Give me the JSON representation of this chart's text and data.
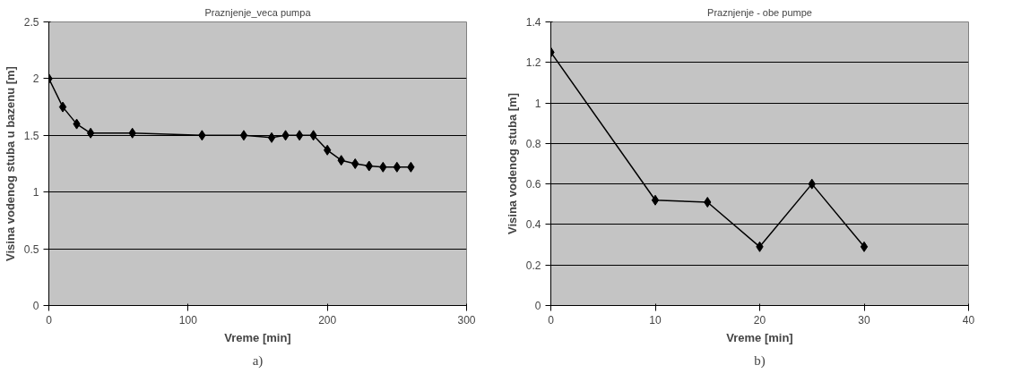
{
  "chart_data": [
    {
      "type": "line",
      "title": "Praznjenje_veca pumpa",
      "xlabel": "Vreme [min]",
      "ylabel": "Visina vodenog stuba u bazenu [m]",
      "annotations": [
        "a)"
      ],
      "series": [
        {
          "color": "#000000",
          "x": [
            0,
            10,
            20,
            30,
            60,
            110,
            140,
            160,
            170,
            180,
            190,
            200,
            210,
            220,
            230,
            240,
            250,
            260
          ],
          "values": [
            2,
            1.75,
            1.6,
            1.52,
            1.52,
            1.5,
            1.5,
            1.48,
            1.5,
            1.5,
            1.5,
            1.37,
            1.28,
            1.25,
            1.23,
            1.22,
            1.22,
            1.22
          ]
        }
      ],
      "xlim": [
        0,
        300
      ],
      "xticks": [
        0,
        100,
        200,
        300
      ],
      "ylim": [
        0,
        2.5
      ],
      "yticks": [
        0,
        0.5,
        1,
        1.5,
        2,
        2.5
      ],
      "grid": "y",
      "marker": "diamond",
      "line_style": "solid"
    },
    {
      "type": "line",
      "title": "Praznjenje - obe pumpe",
      "xlabel": "Vreme [min]",
      "ylabel": "Visina vodenog stuba [m]",
      "annotations": [
        "b)"
      ],
      "series": [
        {
          "color": "#000000",
          "x": [
            0,
            10,
            15,
            20,
            25,
            30
          ],
          "values": [
            1.25,
            0.52,
            0.51,
            0.29,
            0.6,
            0.29
          ]
        }
      ],
      "xlim": [
        0,
        40
      ],
      "xticks": [
        0,
        10,
        20,
        30,
        40
      ],
      "ylim": [
        0,
        1.4
      ],
      "yticks": [
        0,
        0.2,
        0.4,
        0.6,
        0.8,
        1,
        1.2,
        1.4
      ],
      "grid": "y",
      "marker": "diamond",
      "line_style": "solid"
    }
  ]
}
